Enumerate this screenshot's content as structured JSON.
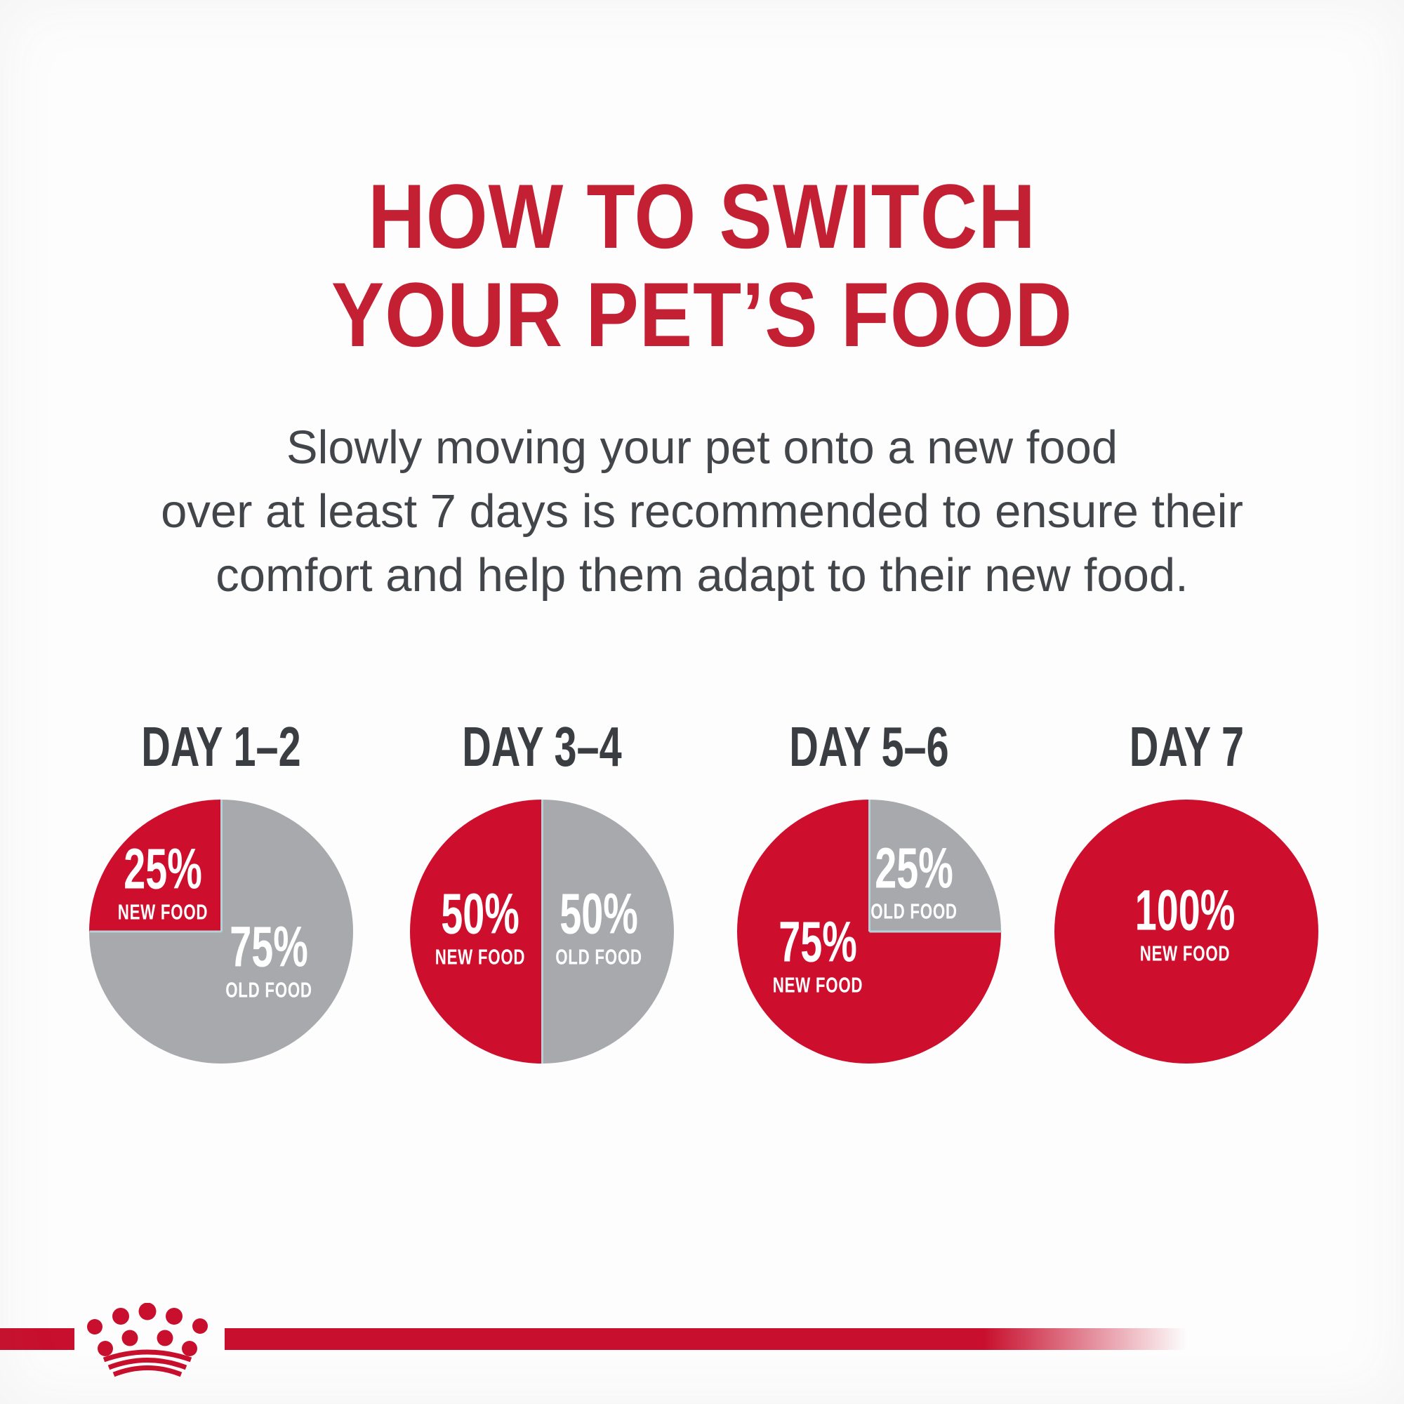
{
  "title": {
    "line1": "HOW TO SWITCH",
    "line2": "YOUR PET’S FOOD"
  },
  "subtitle": {
    "lines": [
      "Slowly moving your pet onto a new food",
      "over at least 7 days is recommended to ensure their",
      "comfort and help them adapt to their new food."
    ]
  },
  "colors": {
    "title_red": "#c32133",
    "new_food_red": "#ce0e2d",
    "old_food_gray": "#a7a9ac",
    "segment_divider": "#b5d1d8",
    "day_label_text": "#3a3e42",
    "subtitle_text": "#42464a",
    "slice_label_text": "#ffffff",
    "logo_red": "#c8102e",
    "background": "#fdfdfd"
  },
  "chart_data": [
    {
      "type": "pie",
      "title": "DAY 1–2",
      "slices": [
        {
          "label": "OLD FOOD",
          "value": 75,
          "value_label": "75%",
          "color_key": "old",
          "label_left": "68%",
          "label_top": "61%"
        },
        {
          "label": "NEW FOOD",
          "value": 25,
          "value_label": "25%",
          "color_key": "new",
          "label_left": "28%",
          "label_top": "31.5%"
        }
      ]
    },
    {
      "type": "pie",
      "title": "DAY 3–4",
      "slices": [
        {
          "label": "OLD FOOD",
          "value": 50,
          "value_label": "50%",
          "color_key": "old",
          "label_left": "71.5%",
          "label_top": "48.5%"
        },
        {
          "label": "NEW FOOD",
          "value": 50,
          "value_label": "50%",
          "color_key": "new",
          "label_left": "26.5%",
          "label_top": "48.5%"
        }
      ]
    },
    {
      "type": "pie",
      "title": "DAY 5–6",
      "slices": [
        {
          "label": "OLD FOOD",
          "value": 25,
          "value_label": "25%",
          "color_key": "old",
          "label_left": "67%",
          "label_top": "31%"
        },
        {
          "label": "NEW FOOD",
          "value": 75,
          "value_label": "75%",
          "color_key": "new",
          "label_left": "30.5%",
          "label_top": "59%"
        }
      ]
    },
    {
      "type": "pie",
      "title": "DAY 7",
      "slices": [
        {
          "label": "NEW FOOD",
          "value": 100,
          "value_label": "100%",
          "color_key": "new",
          "label_left": "49.5%",
          "label_top": "47%"
        }
      ]
    }
  ],
  "chart_layout_note": "slices drawn clockwise starting at 12 o'clock, in array order",
  "logo": {
    "icon": "royal-canin-crown-icon"
  }
}
